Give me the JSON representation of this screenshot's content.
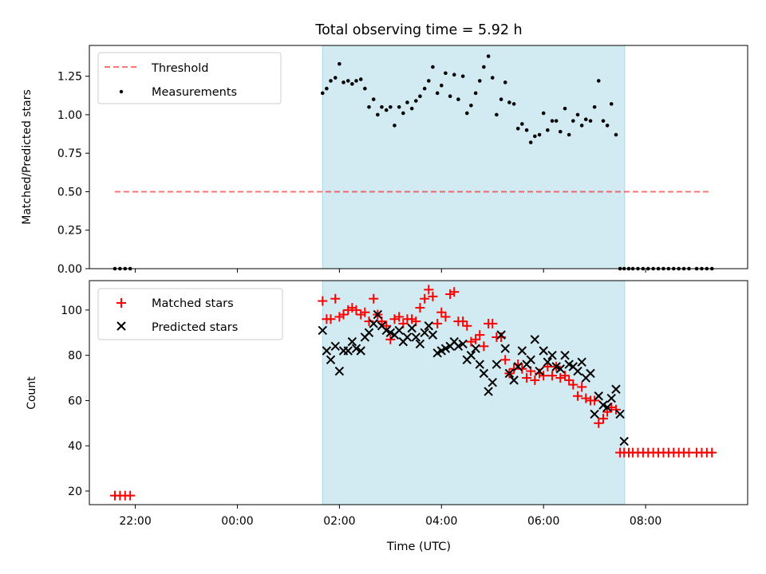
{
  "chart_data": [
    {
      "type": "scatter",
      "title": "Total observing time = 5.92 h",
      "ylabel": "Matched/Predicted stars",
      "xlabel": "",
      "xlim": [
        -2.9,
        10.0
      ],
      "ylim": [
        0.0,
        1.45
      ],
      "yticks": [
        0.0,
        0.25,
        0.5,
        0.75,
        1.0,
        1.25
      ],
      "yticklabels": [
        "0.00",
        "0.25",
        "0.50",
        "0.75",
        "1.00",
        "1.25"
      ],
      "xticks": [
        -2,
        0,
        2,
        4,
        6,
        8
      ],
      "show_xticklabels": false,
      "grid": false,
      "legend_position": "top-left",
      "shaded_interval": {
        "x_start": 1.67,
        "x_end": 7.59,
        "color": "#add8e6"
      },
      "threshold": {
        "name": "Threshold",
        "y": 0.5,
        "x_start": -2.4,
        "x_end": 9.3,
        "color": "#ff0000",
        "style": "dashed"
      },
      "series": [
        {
          "name": "Measurements",
          "marker": "dot",
          "color": "#000000",
          "x": [
            -2.4,
            -2.3,
            -2.2,
            -2.1,
            1.67,
            1.75,
            1.83,
            1.92,
            2.0,
            2.08,
            2.17,
            2.25,
            2.33,
            2.42,
            2.5,
            2.58,
            2.67,
            2.75,
            2.83,
            2.92,
            3.0,
            3.08,
            3.17,
            3.25,
            3.33,
            3.42,
            3.5,
            3.58,
            3.67,
            3.75,
            3.83,
            3.92,
            4.0,
            4.08,
            4.17,
            4.25,
            4.33,
            4.42,
            4.5,
            4.58,
            4.67,
            4.75,
            4.83,
            4.92,
            5.0,
            5.08,
            5.17,
            5.25,
            5.33,
            5.42,
            5.5,
            5.58,
            5.67,
            5.75,
            5.83,
            5.92,
            6.0,
            6.08,
            6.17,
            6.25,
            6.33,
            6.42,
            6.5,
            6.58,
            6.67,
            6.75,
            6.83,
            6.92,
            7.0,
            7.08,
            7.17,
            7.25,
            7.33,
            7.42,
            7.5,
            7.58,
            7.67,
            7.75,
            7.85,
            7.95,
            8.05,
            8.15,
            8.25,
            8.35,
            8.45,
            8.55,
            8.65,
            8.75,
            8.85,
            9.0,
            9.1,
            9.2,
            9.3
          ],
          "y": [
            0.0,
            0.0,
            0.0,
            0.0,
            1.14,
            1.17,
            1.22,
            1.24,
            1.33,
            1.21,
            1.22,
            1.2,
            1.22,
            1.23,
            1.17,
            1.05,
            1.1,
            1.0,
            1.05,
            1.03,
            1.05,
            0.93,
            1.05,
            1.01,
            1.08,
            1.04,
            1.09,
            1.12,
            1.17,
            1.22,
            1.31,
            1.14,
            1.19,
            1.27,
            1.12,
            1.26,
            1.1,
            1.25,
            1.01,
            1.06,
            1.14,
            1.22,
            1.31,
            1.38,
            1.24,
            1.0,
            1.1,
            1.21,
            1.08,
            1.07,
            0.91,
            0.94,
            0.9,
            0.82,
            0.86,
            0.87,
            1.01,
            0.9,
            0.96,
            0.96,
            0.89,
            1.04,
            0.87,
            0.96,
            1.0,
            0.93,
            0.97,
            0.96,
            1.05,
            1.22,
            0.96,
            0.93,
            1.07,
            0.87,
            0.0,
            0.0,
            0.0,
            0.0,
            0.0,
            0.0,
            0.0,
            0.0,
            0.0,
            0.0,
            0.0,
            0.0,
            0.0,
            0.0,
            0.0,
            0.0,
            0.0,
            0.0,
            0.0
          ]
        }
      ]
    },
    {
      "type": "scatter",
      "title": "",
      "ylabel": "Count",
      "xlabel": "Time (UTC)",
      "xlim": [
        -2.9,
        10.0
      ],
      "ylim": [
        14.0,
        113.0
      ],
      "yticks": [
        20,
        40,
        60,
        80,
        100
      ],
      "yticklabels": [
        "20",
        "40",
        "60",
        "80",
        "100"
      ],
      "xticks": [
        -2,
        0,
        2,
        4,
        6,
        8
      ],
      "xticklabels": [
        "22:00",
        "00:00",
        "02:00",
        "04:00",
        "06:00",
        "08:00"
      ],
      "grid": false,
      "legend_position": "top-left",
      "shaded_interval": {
        "x_start": 1.67,
        "x_end": 7.59,
        "color": "#add8e6"
      },
      "series": [
        {
          "name": "Matched stars",
          "marker": "plus",
          "color": "#ff0000",
          "x": [
            -2.4,
            -2.3,
            -2.2,
            -2.1,
            1.67,
            1.75,
            1.83,
            1.92,
            2.0,
            2.08,
            2.17,
            2.25,
            2.33,
            2.42,
            2.5,
            2.58,
            2.67,
            2.75,
            2.83,
            2.92,
            3.0,
            3.08,
            3.17,
            3.25,
            3.33,
            3.42,
            3.5,
            3.58,
            3.67,
            3.75,
            3.83,
            3.92,
            4.0,
            4.08,
            4.17,
            4.25,
            4.33,
            4.42,
            4.5,
            4.58,
            4.67,
            4.75,
            4.83,
            4.92,
            5.0,
            5.08,
            5.17,
            5.25,
            5.33,
            5.42,
            5.5,
            5.58,
            5.67,
            5.75,
            5.83,
            5.92,
            6.0,
            6.08,
            6.17,
            6.25,
            6.33,
            6.42,
            6.5,
            6.58,
            6.67,
            6.75,
            6.83,
            6.92,
            7.0,
            7.08,
            7.17,
            7.25,
            7.33,
            7.42,
            7.5,
            7.58,
            7.67,
            7.75,
            7.85,
            7.95,
            8.05,
            8.15,
            8.25,
            8.35,
            8.45,
            8.55,
            8.65,
            8.75,
            8.85,
            9.0,
            9.1,
            9.2,
            9.3
          ],
          "y": [
            18,
            18,
            18,
            18,
            104,
            96,
            96,
            105,
            97,
            98,
            100,
            101,
            100,
            98,
            99,
            95,
            105,
            98,
            95,
            93,
            87,
            96,
            97,
            94,
            96,
            96,
            95,
            101,
            105,
            109,
            106,
            94,
            99,
            97,
            107,
            108,
            95,
            95,
            93,
            86,
            87,
            89,
            84,
            94,
            94,
            88,
            88,
            78,
            72,
            74,
            76,
            74,
            70,
            73,
            69,
            72,
            71,
            75,
            71,
            75,
            70,
            71,
            69,
            67,
            62,
            66,
            61,
            60,
            60,
            50,
            52,
            55,
            57,
            56,
            37,
            37,
            37,
            37,
            37,
            37,
            37,
            37,
            37,
            37,
            37,
            37,
            37,
            37,
            37,
            37,
            37,
            37,
            37
          ]
        },
        {
          "name": "Predicted stars",
          "marker": "x",
          "color": "#000000",
          "x": [
            1.67,
            1.75,
            1.83,
            1.92,
            2.0,
            2.08,
            2.17,
            2.25,
            2.33,
            2.42,
            2.5,
            2.58,
            2.67,
            2.75,
            2.83,
            2.92,
            3.0,
            3.08,
            3.17,
            3.25,
            3.33,
            3.42,
            3.5,
            3.58,
            3.67,
            3.75,
            3.83,
            3.92,
            4.0,
            4.08,
            4.17,
            4.25,
            4.33,
            4.42,
            4.5,
            4.58,
            4.67,
            4.75,
            4.83,
            4.92,
            5.0,
            5.08,
            5.17,
            5.25,
            5.33,
            5.42,
            5.5,
            5.58,
            5.67,
            5.75,
            5.83,
            5.92,
            6.0,
            6.08,
            6.17,
            6.25,
            6.33,
            6.42,
            6.5,
            6.58,
            6.67,
            6.75,
            6.83,
            6.92,
            7.0,
            7.08,
            7.17,
            7.25,
            7.33,
            7.42,
            7.5,
            7.58
          ],
          "y": [
            91,
            82,
            78,
            84,
            73,
            82,
            82,
            86,
            83,
            82,
            88,
            90,
            94,
            98,
            93,
            91,
            90,
            89,
            91,
            86,
            88,
            92,
            88,
            85,
            90,
            93,
            89,
            81,
            82,
            83,
            84,
            86,
            84,
            85,
            78,
            80,
            83,
            76,
            72,
            64,
            68,
            76,
            89,
            83,
            72,
            69,
            75,
            82,
            76,
            78,
            87,
            73,
            82,
            77,
            80,
            75,
            74,
            80,
            76,
            75,
            73,
            77,
            70,
            72,
            54,
            62,
            58,
            57,
            61,
            65,
            54,
            42
          ]
        }
      ]
    }
  ]
}
